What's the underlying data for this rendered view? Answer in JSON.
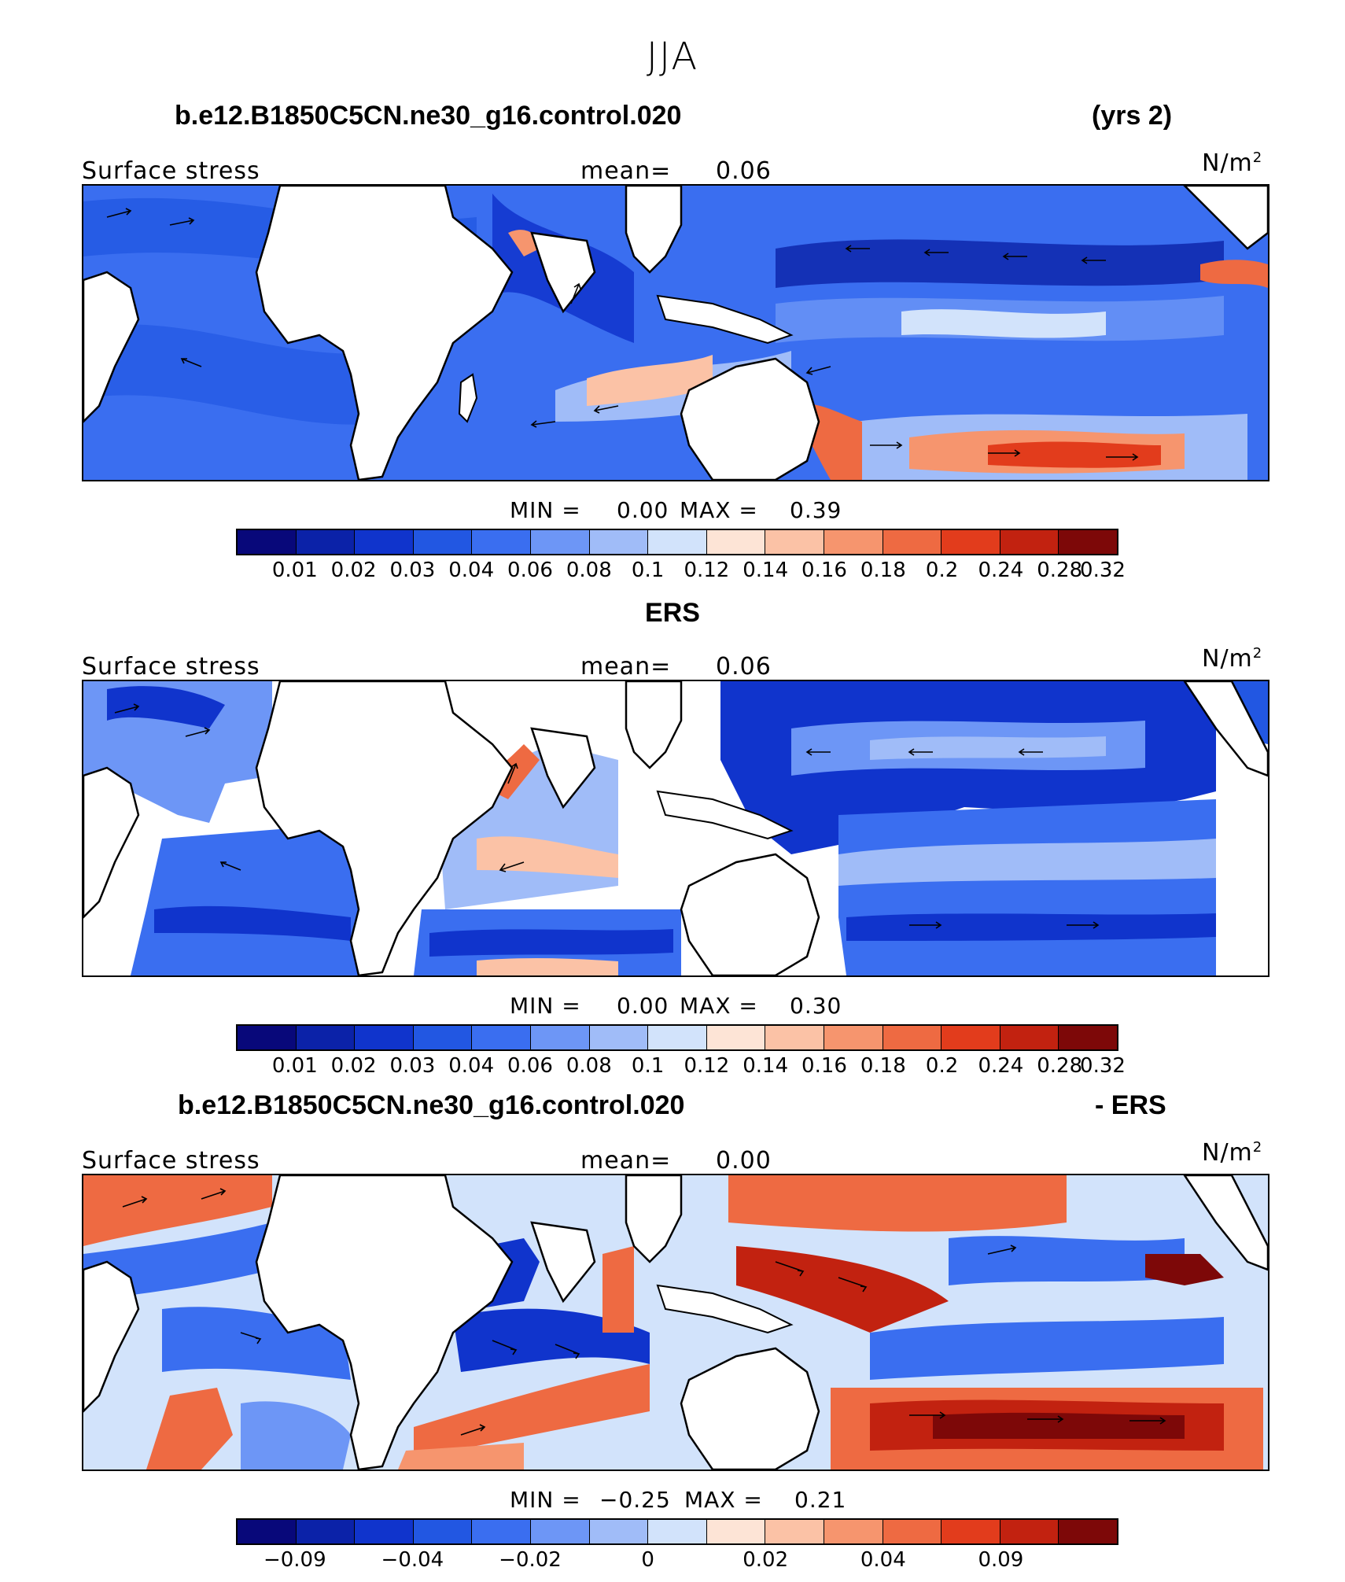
{
  "season": "JJA",
  "panel1": {
    "title_left": "b.e12.B1850C5CN.ne30_g16.control.020",
    "title_right": "(yrs 2)",
    "field": "Surface stress",
    "mean_label": "mean=",
    "mean_value": "0.06",
    "units": "N/m",
    "units_sup": "2",
    "min_label": "MIN =",
    "min_value": "0.00",
    "max_label": "MAX =",
    "max_value": "0.39"
  },
  "panel2": {
    "title": "ERS",
    "field": "Surface stress",
    "mean_label": "mean=",
    "mean_value": "0.06",
    "units": "N/m",
    "units_sup": "2",
    "min_label": "MIN =",
    "min_value": "0.00",
    "max_label": "MAX =",
    "max_value": "0.30"
  },
  "panel3": {
    "title_left": "b.e12.B1850C5CN.ne30_g16.control.020",
    "title_right": "- ERS",
    "field": "Surface stress",
    "mean_label": "mean=",
    "mean_value": "0.00",
    "units": "N/m",
    "units_sup": "2",
    "min_label": "MIN =",
    "min_value": "−0.25",
    "max_label": "MAX =",
    "max_value": "0.21"
  },
  "colorbar_abs": {
    "colors": [
      "#08087a",
      "#0b22a8",
      "#1034cc",
      "#2257e2",
      "#3a6ef0",
      "#6d96f6",
      "#a0bcf8",
      "#d2e3fb",
      "#fde4d6",
      "#fbc2a6",
      "#f6956e",
      "#ee6a42",
      "#e23c1c",
      "#c22210",
      "#7d0808"
    ],
    "ticks": [
      "0.01",
      "0.02",
      "0.03",
      "0.04",
      "0.06",
      "0.08",
      "0.1",
      "0.12",
      "0.14",
      "0.16",
      "0.18",
      "0.2",
      "0.24",
      "0.28",
      "0.32"
    ]
  },
  "colorbar_diff": {
    "colors": [
      "#08087a",
      "#0b22a8",
      "#1034cc",
      "#2257e2",
      "#3a6ef0",
      "#6d96f6",
      "#a0bcf8",
      "#d2e3fb",
      "#fde4d6",
      "#fbc2a6",
      "#f6956e",
      "#ee6a42",
      "#e23c1c",
      "#c22210",
      "#7d0808"
    ],
    "ticks": [
      "−0.09",
      "−0.04",
      "−0.02",
      "0",
      "0.02",
      "0.04",
      "0.09"
    ]
  }
}
